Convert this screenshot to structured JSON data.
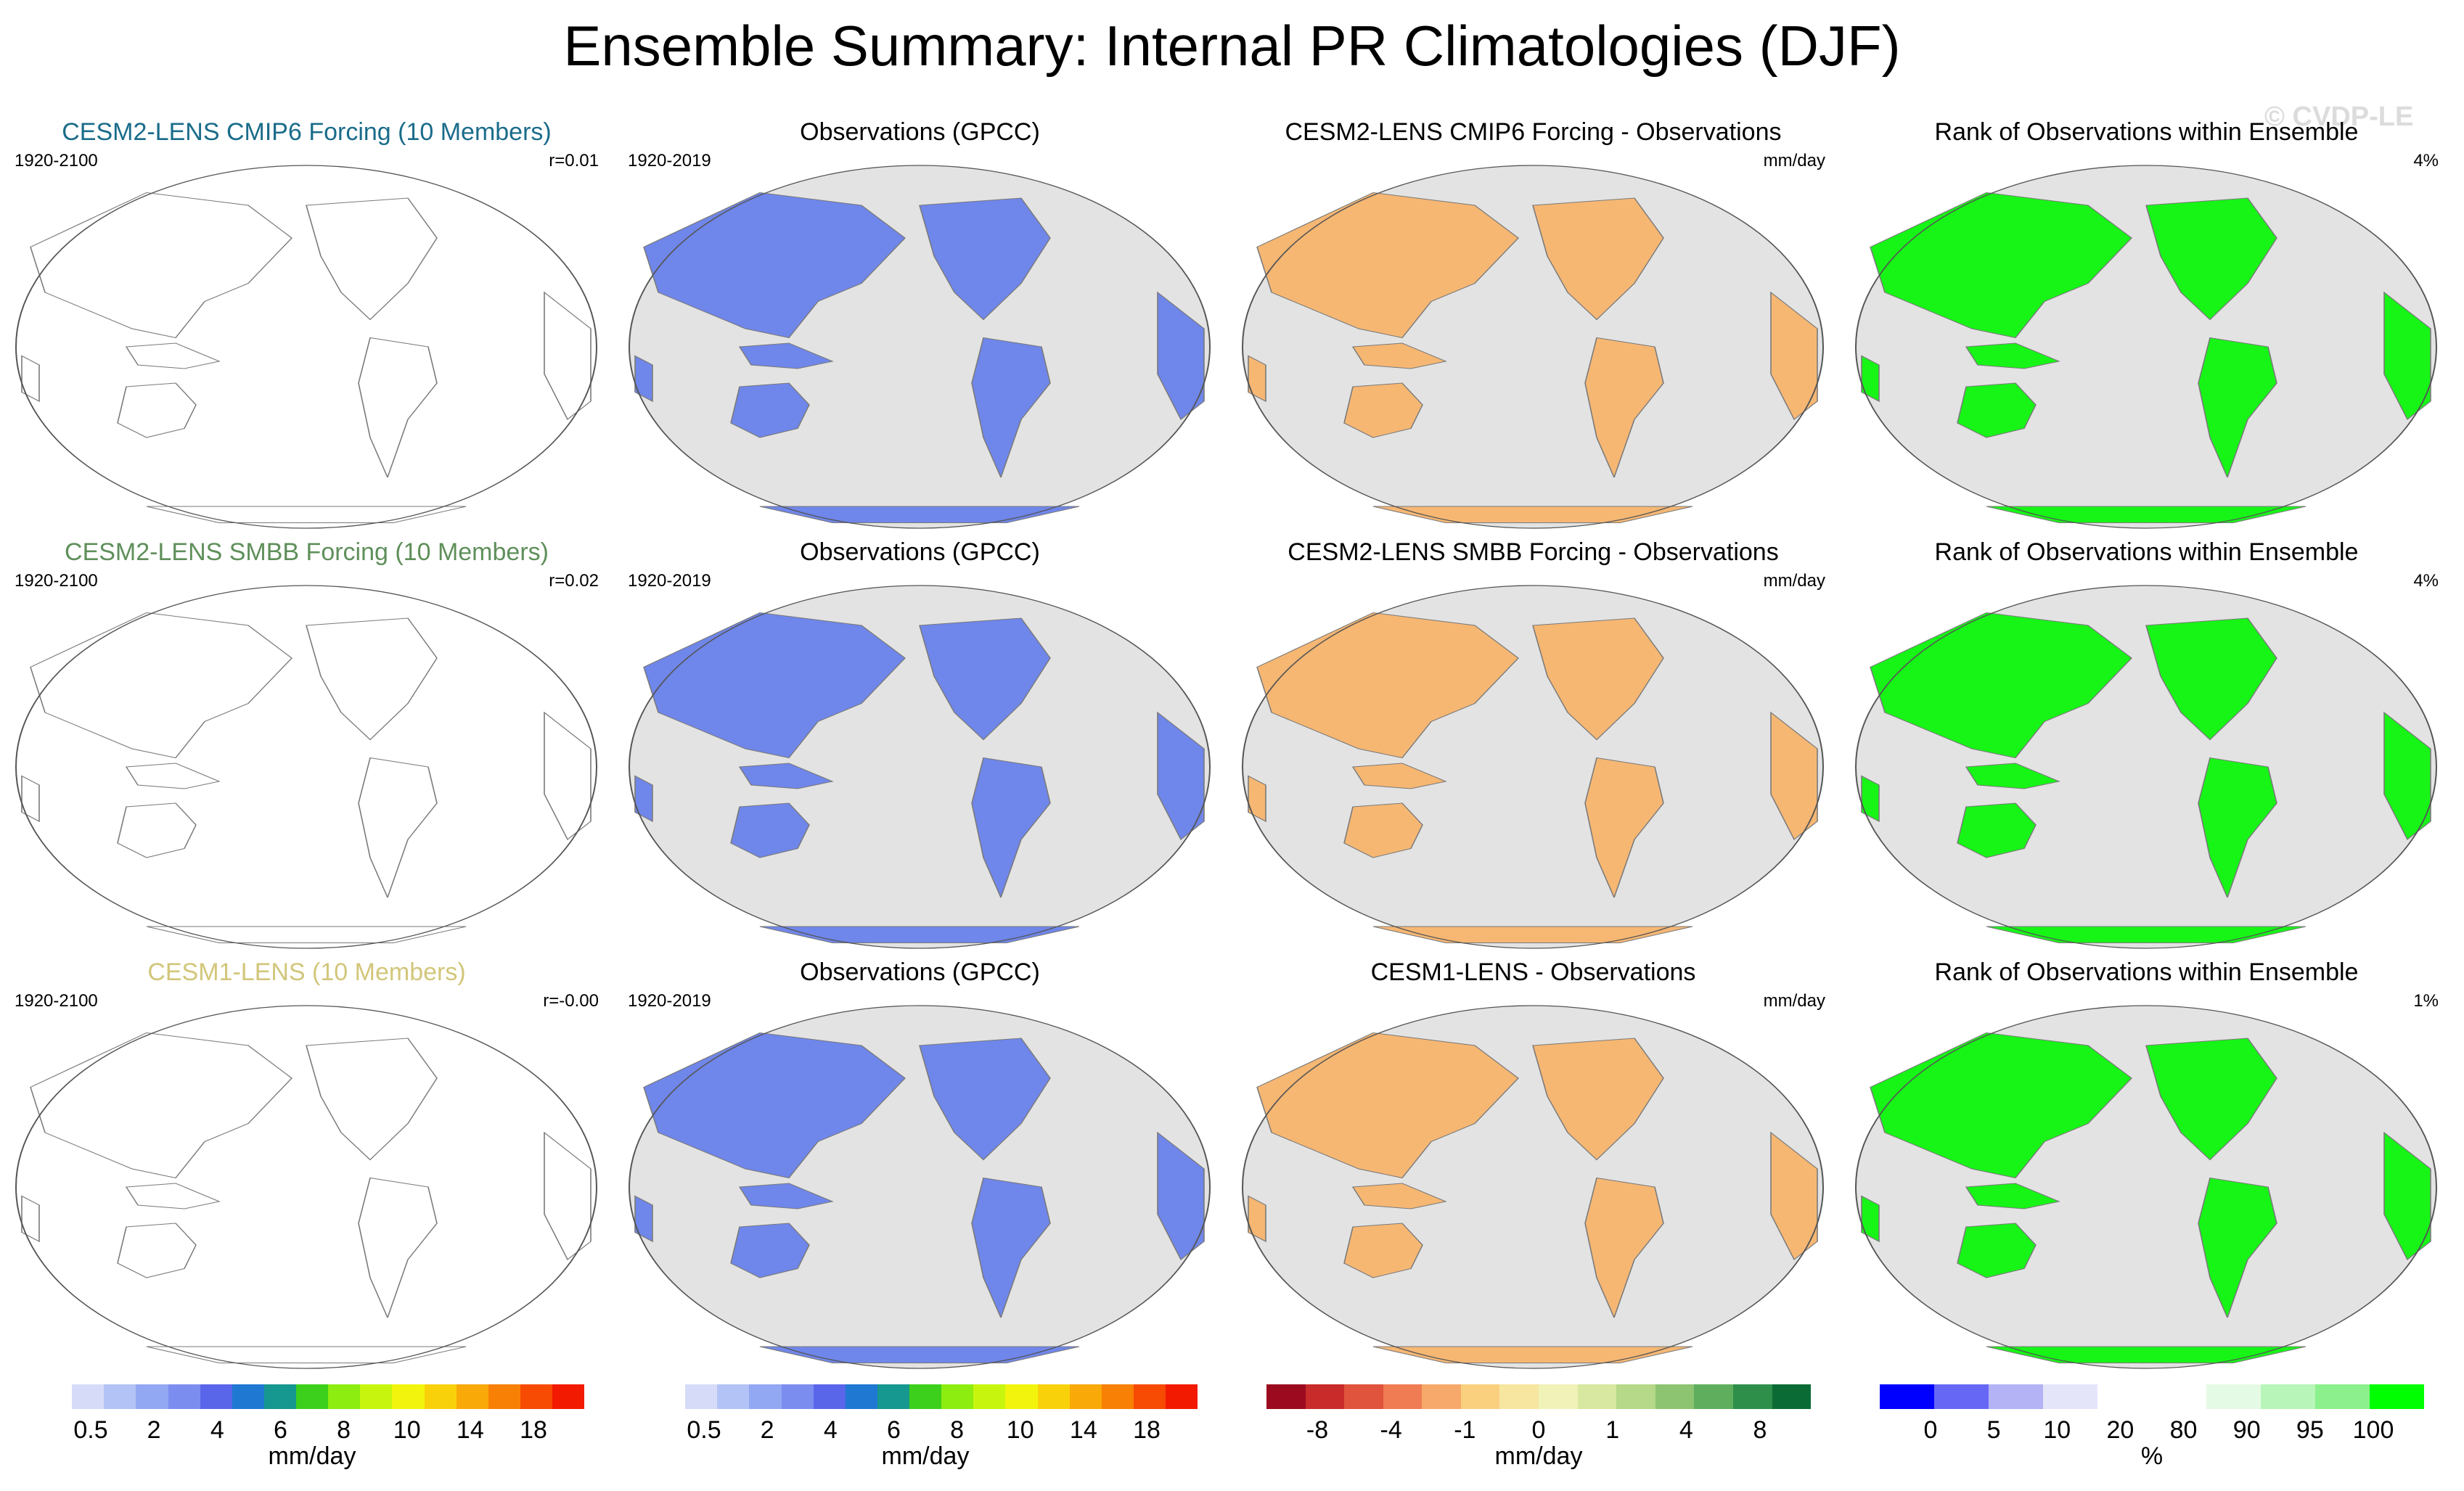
{
  "title": "Ensemble Summary: Internal PR Climatologies (DJF)",
  "watermark": "© CVDP-LE",
  "rows": [
    {
      "model": {
        "title": "CESM2-LENS CMIP6 Forcing (10 Members)",
        "title_color": "#1a6c8a",
        "years": "1920-2100",
        "corr": "r=0.01"
      },
      "obs": {
        "title": "Observations (GPCC)",
        "years": "1920-2019"
      },
      "diff": {
        "title": "CESM2-LENS CMIP6 Forcing - Observations",
        "units": "mm/day"
      },
      "rank": {
        "title": "Rank of Observations within Ensemble",
        "pct": "4%"
      }
    },
    {
      "model": {
        "title": "CESM2-LENS SMBB Forcing (10 Members)",
        "title_color": "#5f8f5a",
        "years": "1920-2100",
        "corr": "r=0.02"
      },
      "obs": {
        "title": "Observations (GPCC)",
        "years": "1920-2019"
      },
      "diff": {
        "title": "CESM2-LENS SMBB Forcing - Observations",
        "units": "mm/day"
      },
      "rank": {
        "title": "Rank of Observations within Ensemble",
        "pct": "4%"
      }
    },
    {
      "model": {
        "title": "CESM1-LENS (10 Members)",
        "title_color": "#d2c67a",
        "years": "1920-2100",
        "corr": "r=-0.00"
      },
      "obs": {
        "title": "Observations (GPCC)",
        "years": "1920-2019"
      },
      "diff": {
        "title": "CESM1-LENS - Observations",
        "units": "mm/day"
      },
      "rank": {
        "title": "Rank of Observations within Ensemble",
        "pct": "1%"
      }
    }
  ],
  "colorbars": [
    {
      "units": "mm/day",
      "colors": [
        "#ffffff",
        "#d6dcf7",
        "#b3c3f5",
        "#92a8f3",
        "#7b8ef0",
        "#5a66ea",
        "#1f78d2",
        "#16978f",
        "#3ccf1c",
        "#8ded11",
        "#c7f50e",
        "#f2f40d",
        "#f9d10b",
        "#f9a908",
        "#f88005",
        "#f74a03",
        "#f21a00"
      ],
      "ticks": [
        "0.5",
        "2",
        "4",
        "6",
        "8",
        "10",
        "14",
        "18"
      ]
    },
    {
      "units": "mm/day",
      "colors": [
        "#ffffff",
        "#d6dcf7",
        "#b3c3f5",
        "#92a8f3",
        "#7b8ef0",
        "#5a66ea",
        "#1f78d2",
        "#16978f",
        "#3ccf1c",
        "#8ded11",
        "#c7f50e",
        "#f2f40d",
        "#f9d10b",
        "#f9a908",
        "#f88005",
        "#f74a03",
        "#f21a00"
      ],
      "ticks": [
        "0.5",
        "2",
        "4",
        "6",
        "8",
        "10",
        "14",
        "18"
      ]
    },
    {
      "units": "mm/day",
      "colors": [
        "#9b0a1f",
        "#c92a2a",
        "#e0533c",
        "#ef7c52",
        "#f6a96a",
        "#fad07f",
        "#f7e6a0",
        "#f0f2b8",
        "#d8e8a0",
        "#b5d889",
        "#8cc472",
        "#5fae5d",
        "#2e8f4a",
        "#0b6b35"
      ],
      "ticks": [
        "-8",
        "-4",
        "-1",
        "0",
        "1",
        "4",
        "8"
      ]
    },
    {
      "units": "%",
      "colors": [
        "#0000ff",
        "#6767f5",
        "#b3b3f5",
        "#e5e5fa",
        "#ffffff",
        "#ffffff",
        "#e5fae5",
        "#b8f5b8",
        "#8cf08c",
        "#00ff00"
      ],
      "ticks": [
        "0",
        "5",
        "10",
        "20",
        "80",
        "90",
        "95",
        "100"
      ]
    }
  ]
}
